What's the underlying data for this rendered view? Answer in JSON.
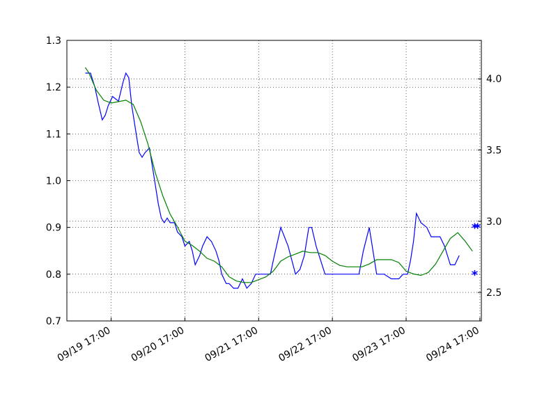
{
  "chart_data": {
    "type": "line",
    "x_ticks": [
      "09/19 17:00",
      "09/20 17:00",
      "09/21 17:00",
      "09/22 17:00",
      "09/23 17:00",
      "09/24 17:00"
    ],
    "left_axis": {
      "ylim": [
        0.7,
        1.3
      ],
      "ticks": [
        "0.7",
        "0.8",
        "0.9",
        "1.0",
        "1.1",
        "1.2",
        "1.3"
      ]
    },
    "right_axis": {
      "ylim": [
        2.3,
        4.27
      ],
      "ticks": [
        "2.5",
        "3.0",
        "3.5",
        "4.0"
      ]
    },
    "xlim_days": [
      -0.6,
      5.02
    ],
    "grid": true,
    "colors": {
      "blue": "#0000ff",
      "green": "#008000"
    },
    "series": [
      {
        "color": "blue",
        "axis": "left",
        "x": [
          -0.35,
          -0.28,
          -0.22,
          -0.18,
          -0.12,
          -0.08,
          -0.04,
          0.02,
          0.1,
          0.16,
          0.2,
          0.24,
          0.28,
          0.34,
          0.38,
          0.42,
          0.46,
          0.52,
          0.58,
          0.64,
          0.68,
          0.72,
          0.76,
          0.8,
          0.86,
          0.9,
          0.96,
          1.0,
          1.06,
          1.1,
          1.14,
          1.2,
          1.24,
          1.3,
          1.36,
          1.42,
          1.46,
          1.5,
          1.56,
          1.6,
          1.66,
          1.72,
          1.78,
          1.84,
          1.9,
          1.96,
          2.0,
          2.06,
          2.12,
          2.16,
          2.2,
          2.3,
          2.4,
          2.5,
          2.56,
          2.62,
          2.68,
          2.72,
          2.78,
          2.84,
          2.9,
          2.94,
          3.0,
          3.06,
          3.12,
          3.18,
          3.24,
          3.3,
          3.36,
          3.42,
          3.5,
          3.6,
          3.7,
          3.8,
          3.9,
          3.96,
          4.02,
          4.06,
          4.1,
          4.14,
          4.2,
          4.28,
          4.34,
          4.4,
          4.46,
          4.52,
          4.56,
          4.6,
          4.66,
          4.72,
          4.78,
          4.84,
          4.9,
          4.94
        ],
        "y": [
          1.23,
          1.23,
          1.2,
          1.17,
          1.13,
          1.14,
          1.16,
          1.18,
          1.17,
          1.21,
          1.23,
          1.22,
          1.16,
          1.1,
          1.06,
          1.05,
          1.06,
          1.07,
          1.01,
          0.95,
          0.92,
          0.91,
          0.92,
          0.91,
          0.91,
          0.89,
          0.88,
          0.86,
          0.87,
          0.85,
          0.82,
          0.84,
          0.86,
          0.88,
          0.87,
          0.85,
          0.83,
          0.8,
          0.78,
          0.78,
          0.77,
          0.77,
          0.79,
          0.77,
          0.78,
          0.8,
          0.8,
          0.8,
          0.8,
          0.8,
          0.83,
          0.9,
          0.86,
          0.8,
          0.81,
          0.84,
          0.9,
          0.9,
          0.86,
          0.83,
          0.8,
          0.8,
          0.8,
          0.8,
          0.8,
          0.8,
          0.8,
          0.8,
          0.8,
          0.85,
          0.9,
          0.8,
          0.8,
          0.79,
          0.79,
          0.8,
          0.8,
          0.83,
          0.87,
          0.93,
          0.91,
          0.9,
          0.88,
          0.88,
          0.88,
          0.86,
          0.84,
          0.82,
          0.82,
          0.84,
          null,
          null,
          null,
          0.81
        ]
      },
      {
        "color": "green",
        "axis": "right",
        "x": [
          -0.35,
          -0.3,
          -0.2,
          -0.1,
          0.0,
          0.1,
          0.2,
          0.3,
          0.4,
          0.5,
          0.6,
          0.7,
          0.8,
          0.9,
          1.0,
          1.1,
          1.2,
          1.3,
          1.4,
          1.5,
          1.6,
          1.7,
          1.8,
          1.9,
          2.0,
          2.1,
          2.2,
          2.3,
          2.4,
          2.5,
          2.6,
          2.7,
          2.8,
          2.9,
          3.0,
          3.1,
          3.2,
          3.3,
          3.4,
          3.5,
          3.6,
          3.7,
          3.8,
          3.9,
          4.0,
          4.1,
          4.2,
          4.3,
          4.4,
          4.5,
          4.6,
          4.7,
          4.8,
          4.9
        ],
        "y": [
          4.08,
          4.04,
          3.92,
          3.85,
          3.83,
          3.84,
          3.85,
          3.82,
          3.7,
          3.54,
          3.34,
          3.18,
          3.05,
          2.96,
          2.86,
          2.83,
          2.79,
          2.74,
          2.72,
          2.68,
          2.61,
          2.58,
          2.57,
          2.57,
          2.59,
          2.61,
          2.65,
          2.72,
          2.75,
          2.77,
          2.79,
          2.78,
          2.78,
          2.76,
          2.72,
          2.69,
          2.68,
          2.68,
          2.68,
          2.7,
          2.73,
          2.73,
          2.73,
          2.71,
          2.65,
          2.63,
          2.62,
          2.64,
          2.7,
          2.79,
          2.88,
          2.92,
          2.86,
          2.79
        ]
      }
    ],
    "markers": [
      {
        "label": "*",
        "x": 4.93,
        "y_left": 0.8,
        "color": "blue"
      },
      {
        "label": "*",
        "x": 4.93,
        "y_left": 0.9,
        "color": "blue"
      },
      {
        "label": "*",
        "x": 4.97,
        "y_left": 0.9,
        "color": "blue"
      }
    ]
  }
}
